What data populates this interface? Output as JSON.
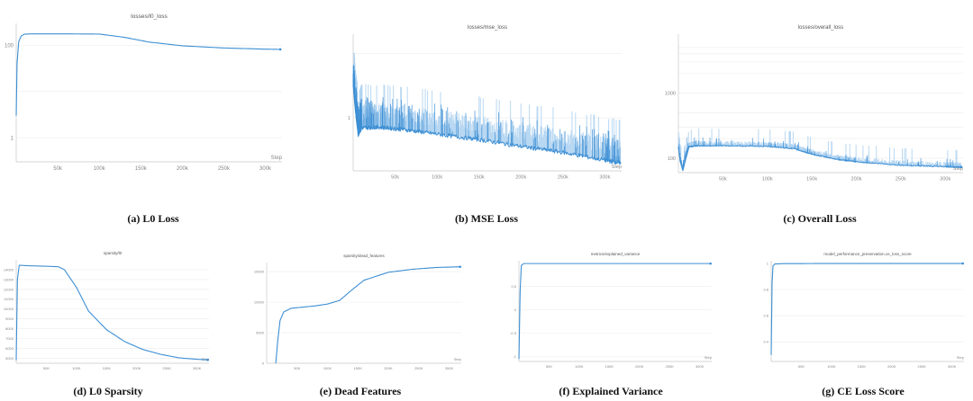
{
  "colors": {
    "line": "#3d8fd4",
    "band": "#aad0f0",
    "grid": "#ececec",
    "axis": "#c8c8c8",
    "text": "#888888"
  },
  "x_axis_label": "Step",
  "chart_data": [
    {
      "id": "a",
      "type": "line",
      "title": "losses/l0_loss",
      "caption": "(a) L0 Loss",
      "yscale": "log",
      "ylim": [
        0.3,
        300
      ],
      "xlim": [
        0,
        320000
      ],
      "xticks": [
        {
          "v": 50000,
          "l": "50k"
        },
        {
          "v": 100000,
          "l": "100k"
        },
        {
          "v": 150000,
          "l": "150k"
        },
        {
          "v": 200000,
          "l": "200k"
        },
        {
          "v": 250000,
          "l": "250k"
        },
        {
          "v": 300000,
          "l": "300k"
        }
      ],
      "yticks": [
        {
          "v": 100,
          "l": "100"
        },
        {
          "v": 1,
          "l": "1"
        }
      ],
      "grid_y": [
        100,
        10,
        1
      ],
      "series": [
        {
          "x": [
            0,
            1000,
            3000,
            6000,
            10000,
            20000,
            50000,
            100000,
            130000,
            160000,
            200000,
            250000,
            300000,
            318000
          ],
          "y": [
            3,
            40,
            120,
            160,
            175,
            178,
            178,
            176,
            150,
            118,
            98,
            88,
            83,
            82
          ]
        }
      ]
    },
    {
      "id": "b",
      "type": "line",
      "title": "losses/mse_loss",
      "caption": "(b) MSE Loss",
      "yscale": "log",
      "ylim": [
        0.15,
        20
      ],
      "xlim": [
        0,
        320000
      ],
      "xticks": [
        {
          "v": 50000,
          "l": "50k"
        },
        {
          "v": 100000,
          "l": "100k"
        },
        {
          "v": 150000,
          "l": "150k"
        },
        {
          "v": 200000,
          "l": "200k"
        },
        {
          "v": 250000,
          "l": "250k"
        },
        {
          "v": 300000,
          "l": "300k"
        }
      ],
      "yticks": [
        {
          "v": 1,
          "l": "1"
        }
      ],
      "grid_y": [
        10,
        1
      ],
      "series": [
        {
          "x": [
            0,
            3000,
            6000,
            10000,
            30000,
            60000,
            100000,
            150000,
            200000,
            250000,
            300000,
            318000
          ],
          "y": [
            3.2,
            1.2,
            0.55,
            0.7,
            0.72,
            0.66,
            0.56,
            0.46,
            0.36,
            0.29,
            0.22,
            0.2
          ]
        }
      ],
      "noise": true
    },
    {
      "id": "c",
      "type": "line",
      "title": "losses/overall_loss",
      "caption": "(c) Overall Loss",
      "yscale": "log",
      "ylim": [
        60,
        8000
      ],
      "xlim": [
        0,
        320000
      ],
      "xticks": [
        {
          "v": 50000,
          "l": "50k"
        },
        {
          "v": 100000,
          "l": "100k"
        },
        {
          "v": 150000,
          "l": "150k"
        },
        {
          "v": 200000,
          "l": "200k"
        },
        {
          "v": 250000,
          "l": "250k"
        },
        {
          "v": 300000,
          "l": "300k"
        }
      ],
      "yticks": [
        {
          "v": 1000,
          "l": "1000"
        },
        {
          "v": 100,
          "l": "100"
        }
      ],
      "grid_y": [
        5000,
        4000,
        3000,
        2000,
        1000,
        500,
        300,
        200,
        100
      ],
      "series": [
        {
          "x": [
            0,
            2000,
            5000,
            8000,
            12000,
            20000,
            50000,
            100000,
            130000,
            150000,
            180000,
            200000,
            250000,
            300000,
            318000
          ],
          "y": [
            150,
            90,
            65,
            95,
            150,
            155,
            155,
            152,
            140,
            115,
            95,
            88,
            78,
            74,
            73
          ]
        }
      ],
      "noise": true
    },
    {
      "id": "d",
      "type": "line",
      "title": "sparsity/l0",
      "caption": "(d) L0 Sparsity",
      "yscale": "linear",
      "ylim": [
        4500,
        15000
      ],
      "xlim": [
        0,
        320000
      ],
      "xticks": [
        {
          "v": 50000,
          "l": "50K"
        },
        {
          "v": 100000,
          "l": "100K"
        },
        {
          "v": 150000,
          "l": "150K"
        },
        {
          "v": 200000,
          "l": "200K"
        },
        {
          "v": 250000,
          "l": "250K"
        },
        {
          "v": 300000,
          "l": "300K"
        }
      ],
      "yticks": [
        {
          "v": 5000,
          "l": "5000"
        },
        {
          "v": 6000,
          "l": "6000"
        },
        {
          "v": 7000,
          "l": "7000"
        },
        {
          "v": 8000,
          "l": "8000"
        },
        {
          "v": 9000,
          "l": "9000"
        },
        {
          "v": 10000,
          "l": "10000"
        },
        {
          "v": 11000,
          "l": "11000"
        },
        {
          "v": 12000,
          "l": "12000"
        },
        {
          "v": 13000,
          "l": "13000"
        },
        {
          "v": 14000,
          "l": "14000"
        }
      ],
      "series": [
        {
          "x": [
            0,
            2000,
            5000,
            20000,
            50000,
            70000,
            80000,
            100000,
            120000,
            150000,
            180000,
            210000,
            240000,
            270000,
            300000,
            318000
          ],
          "y": [
            4800,
            13000,
            14450,
            14400,
            14350,
            14300,
            14000,
            12200,
            9800,
            7900,
            6700,
            5900,
            5400,
            5050,
            4900,
            4850
          ]
        }
      ]
    },
    {
      "id": "e",
      "type": "line",
      "title": "sparsity/dead_features",
      "caption": "(e) Dead Features",
      "yscale": "linear",
      "ylim": [
        0,
        16500
      ],
      "xlim": [
        0,
        320000
      ],
      "xticks": [
        {
          "v": 50000,
          "l": "50K"
        },
        {
          "v": 100000,
          "l": "100K"
        },
        {
          "v": 150000,
          "l": "150K"
        },
        {
          "v": 200000,
          "l": "200K"
        },
        {
          "v": 250000,
          "l": "250K"
        },
        {
          "v": 300000,
          "l": "300K"
        }
      ],
      "yticks": [
        {
          "v": 0,
          "l": "0"
        },
        {
          "v": 5000,
          "l": "5000"
        },
        {
          "v": 10000,
          "l": "10000"
        },
        {
          "v": 15000,
          "l": "15000"
        }
      ],
      "series": [
        {
          "x": [
            15000,
            18000,
            22000,
            28000,
            40000,
            60000,
            80000,
            100000,
            120000,
            140000,
            160000,
            200000,
            240000,
            280000,
            318000
          ],
          "y": [
            0,
            3500,
            7000,
            8400,
            9000,
            9200,
            9400,
            9700,
            10300,
            12000,
            13600,
            14900,
            15400,
            15700,
            15800
          ]
        }
      ]
    },
    {
      "id": "f",
      "type": "line",
      "title": "metrics/explained_variance",
      "caption": "(f) Explained Variance",
      "yscale": "linear",
      "ylim": [
        -1.1,
        1.05
      ],
      "xlim": [
        0,
        320000
      ],
      "xticks": [
        {
          "v": 50000,
          "l": "50K"
        },
        {
          "v": 100000,
          "l": "100K"
        },
        {
          "v": 150000,
          "l": "150K"
        },
        {
          "v": 200000,
          "l": "200K"
        },
        {
          "v": 250000,
          "l": "250K"
        },
        {
          "v": 300000,
          "l": "300K"
        }
      ],
      "yticks": [
        {
          "v": 0.5,
          "l": "0.5"
        },
        {
          "v": 0,
          "l": "0"
        },
        {
          "v": -0.5,
          "l": "-0.5"
        },
        {
          "v": -1,
          "l": "-1"
        }
      ],
      "series": [
        {
          "x": [
            0,
            2000,
            4000,
            8000,
            20000,
            50000,
            100000,
            200000,
            318000
          ],
          "y": [
            -1.05,
            0.4,
            0.95,
            0.99,
            0.99,
            0.99,
            0.99,
            0.99,
            0.99
          ]
        }
      ]
    },
    {
      "id": "g",
      "type": "line",
      "title": "model_performance_preservation.ce_loss_score",
      "caption": "(g) CE Loss Score",
      "yscale": "linear",
      "ylim": [
        0.25,
        1.02
      ],
      "xlim": [
        0,
        320000
      ],
      "xticks": [
        {
          "v": 50000,
          "l": "50K"
        },
        {
          "v": 100000,
          "l": "100K"
        },
        {
          "v": 150000,
          "l": "150K"
        },
        {
          "v": 200000,
          "l": "200K"
        },
        {
          "v": 250000,
          "l": "250K"
        },
        {
          "v": 300000,
          "l": "300K"
        }
      ],
      "yticks": [
        {
          "v": 1,
          "l": "1"
        },
        {
          "v": 0.8,
          "l": "0.8"
        },
        {
          "v": 0.6,
          "l": "0.6"
        },
        {
          "v": 0.4,
          "l": "0.4"
        }
      ],
      "series": [
        {
          "x": [
            0,
            1500,
            3000,
            6000,
            20000,
            100000,
            200000,
            318000
          ],
          "y": [
            0.3,
            0.85,
            0.98,
            0.995,
            0.998,
            0.999,
            0.999,
            0.999
          ]
        }
      ]
    }
  ]
}
